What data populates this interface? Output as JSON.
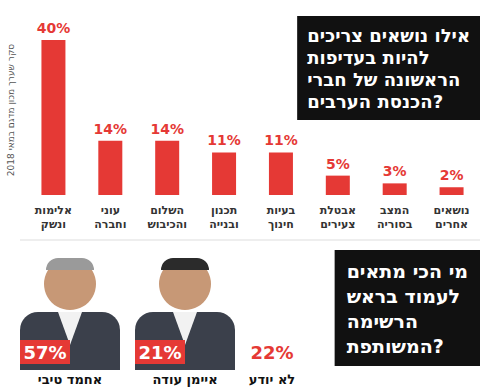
{
  "chart_data": {
    "type": "bar",
    "title": "אילו נושאים צריכים\nלהיות בעדיפות\nהראשונה של חברי\nהכנסת הערבים?",
    "subtitle": "סקר שערך מכון מדגם במאי 2018",
    "categories": [
      "אלימות\nונשק",
      "עוני\nוחברה",
      "השלום\nוהכיבוש",
      "תכנון\nובנייה",
      "בעיות\nחינוך",
      "אבטלת\nצעירים",
      "המצב\nבסוריה",
      "נושאים\nאחרים"
    ],
    "values": [
      40,
      14,
      14,
      11,
      11,
      5,
      3,
      2
    ],
    "value_labels": [
      "40%",
      "14%",
      "14%",
      "11%",
      "11%",
      "5%",
      "3%",
      "2%"
    ],
    "color": "#e53935",
    "ylim": [
      0,
      40
    ],
    "yticks": [
      0,
      40
    ],
    "grid": false,
    "data_labels": true,
    "tick_labels": "x"
  },
  "poll": {
    "title": "מי הכי מתאים\nלעמוד בראש\nהרשימה\nהמשותפת?",
    "names": [
      "אחמד טיבי",
      "איימן עודה",
      "לא יודע"
    ],
    "values": [
      57,
      21,
      22
    ],
    "value_labels": [
      "57%",
      "21%",
      "22%"
    ],
    "color": "#e53935"
  }
}
